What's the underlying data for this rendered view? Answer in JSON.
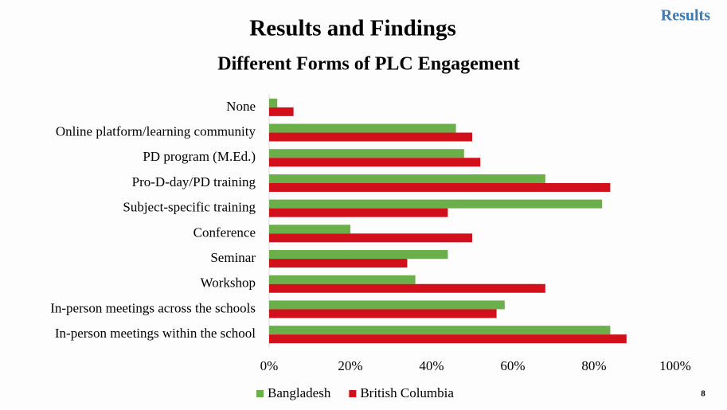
{
  "slide": {
    "section": "Results",
    "title": "Results and Findings",
    "page_number": "8"
  },
  "chart_data": {
    "type": "bar",
    "orientation": "horizontal",
    "title": "Different Forms of PLC Engagement",
    "categories": [
      "None",
      "Online platform/learning community",
      "PD program (M.Ed.)",
      "Pro-D-day/PD training",
      "Subject-specific training",
      "Conference",
      "Seminar",
      "Workshop",
      "In-person meetings across the schools",
      "In-person meetings within the school"
    ],
    "series": [
      {
        "name": "Bangladesh",
        "color": "#6aaf4a",
        "values": [
          2,
          46,
          48,
          68,
          82,
          20,
          44,
          36,
          58,
          84
        ]
      },
      {
        "name": "British Columbia",
        "color": "#d2101c",
        "values": [
          6,
          50,
          52,
          84,
          44,
          50,
          34,
          68,
          56,
          88
        ]
      }
    ],
    "xlim": [
      0,
      100
    ],
    "xticks": [
      {
        "value": 0,
        "label": "0%"
      },
      {
        "value": 20,
        "label": "20%"
      },
      {
        "value": 40,
        "label": "40%"
      },
      {
        "value": 60,
        "label": "60%"
      },
      {
        "value": 80,
        "label": "80%"
      },
      {
        "value": 100,
        "label": "100%"
      }
    ],
    "grid": false,
    "legend": "bottom"
  }
}
